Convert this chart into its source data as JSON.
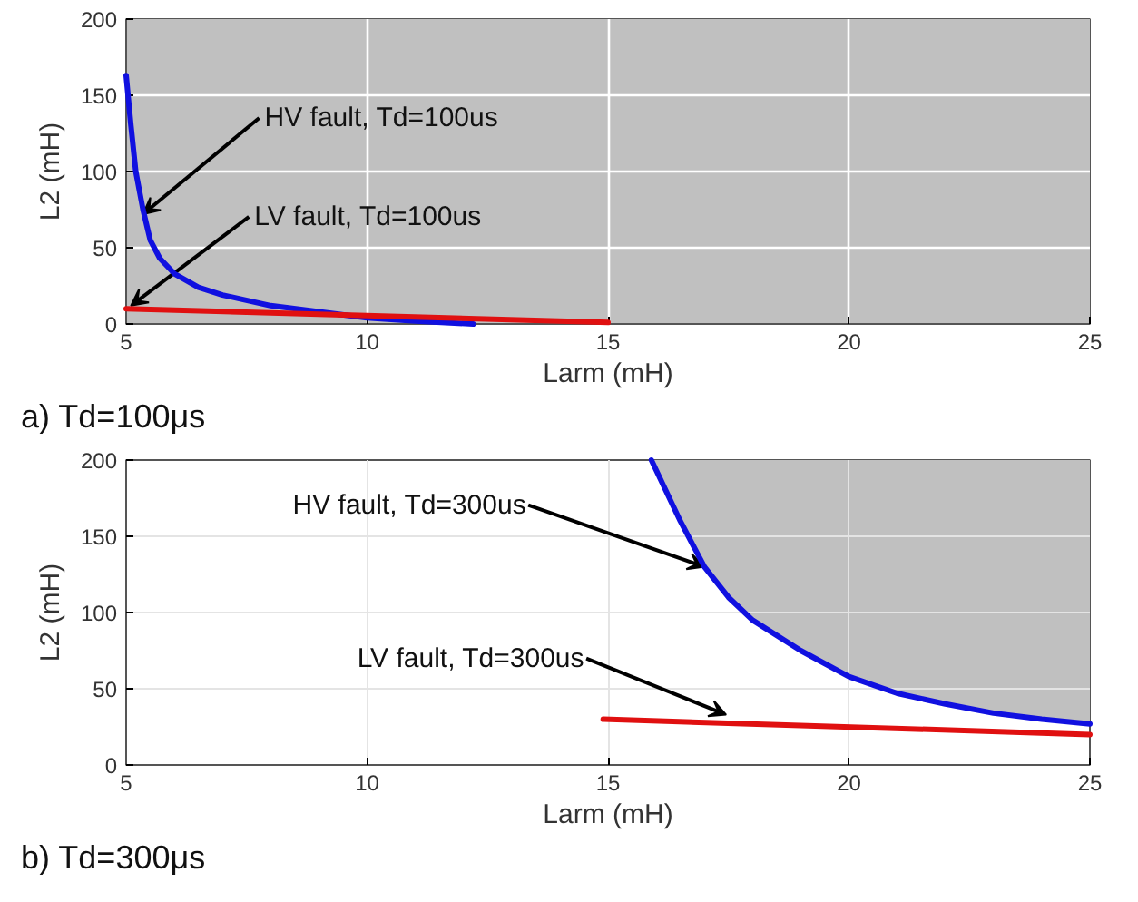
{
  "chart_data": [
    {
      "type": "line",
      "title": "a) Td=100μs",
      "xlabel": "Larm (mH)",
      "ylabel": "L2 (mH)",
      "xlim": [
        5,
        25
      ],
      "ylim": [
        0,
        200
      ],
      "xticks": [
        5,
        10,
        15,
        20,
        25
      ],
      "yticks": [
        0,
        50,
        100,
        150,
        200
      ],
      "grid": true,
      "bands": [
        {
          "axis": "x",
          "from": 5,
          "to": 25,
          "color": "#c0c0c0"
        }
      ],
      "series": [
        {
          "color": "#1010e0",
          "x": [
            5,
            5.1,
            5.2,
            5.35,
            5.5,
            5.7,
            6,
            6.5,
            7,
            8,
            9,
            10,
            11,
            12.2
          ],
          "values": [
            163,
            130,
            100,
            75,
            55,
            43,
            33,
            24,
            19,
            12,
            8,
            4,
            2,
            0
          ]
        },
        {
          "color": "#e01010",
          "x": [
            5,
            15
          ],
          "values": [
            10,
            1
          ]
        }
      ],
      "annotations": [
        {
          "text": "HV fault, Td=100us",
          "x": 5.35,
          "y": 72
        },
        {
          "text": "LV fault, Td=100us",
          "x": 5.1,
          "y": 12
        }
      ]
    },
    {
      "type": "line",
      "title": "b) Td=300μs",
      "xlabel": "Larm (mH)",
      "ylabel": "L2 (mH)",
      "xlim": [
        5,
        25
      ],
      "ylim": [
        0,
        200
      ],
      "xticks": [
        5,
        10,
        15,
        20,
        25
      ],
      "yticks": [
        0,
        50,
        100,
        150,
        200
      ],
      "grid": true,
      "series": [
        {
          "color": "#1010e0",
          "x": [
            15.9,
            16.5,
            17,
            17.5,
            18,
            19,
            20,
            21,
            22,
            23,
            24,
            25
          ],
          "values": [
            200,
            160,
            130,
            110,
            95,
            75,
            58,
            47,
            40,
            34,
            30,
            27
          ],
          "lower": [
            200,
            160,
            130,
            110,
            95,
            75,
            58,
            47,
            40,
            34,
            30,
            27
          ],
          "upper": [
            200,
            200,
            200,
            200,
            200,
            200,
            200,
            200,
            200,
            200,
            200,
            200
          ]
        },
        {
          "color": "#e01010",
          "x": [
            14.9,
            25
          ],
          "values": [
            30,
            20
          ]
        }
      ],
      "annotations": [
        {
          "text": "HV fault, Td=300us",
          "x": 17,
          "y": 130
        },
        {
          "text": "LV fault, Td=300us",
          "x": 17.45,
          "y": 33
        }
      ]
    }
  ]
}
